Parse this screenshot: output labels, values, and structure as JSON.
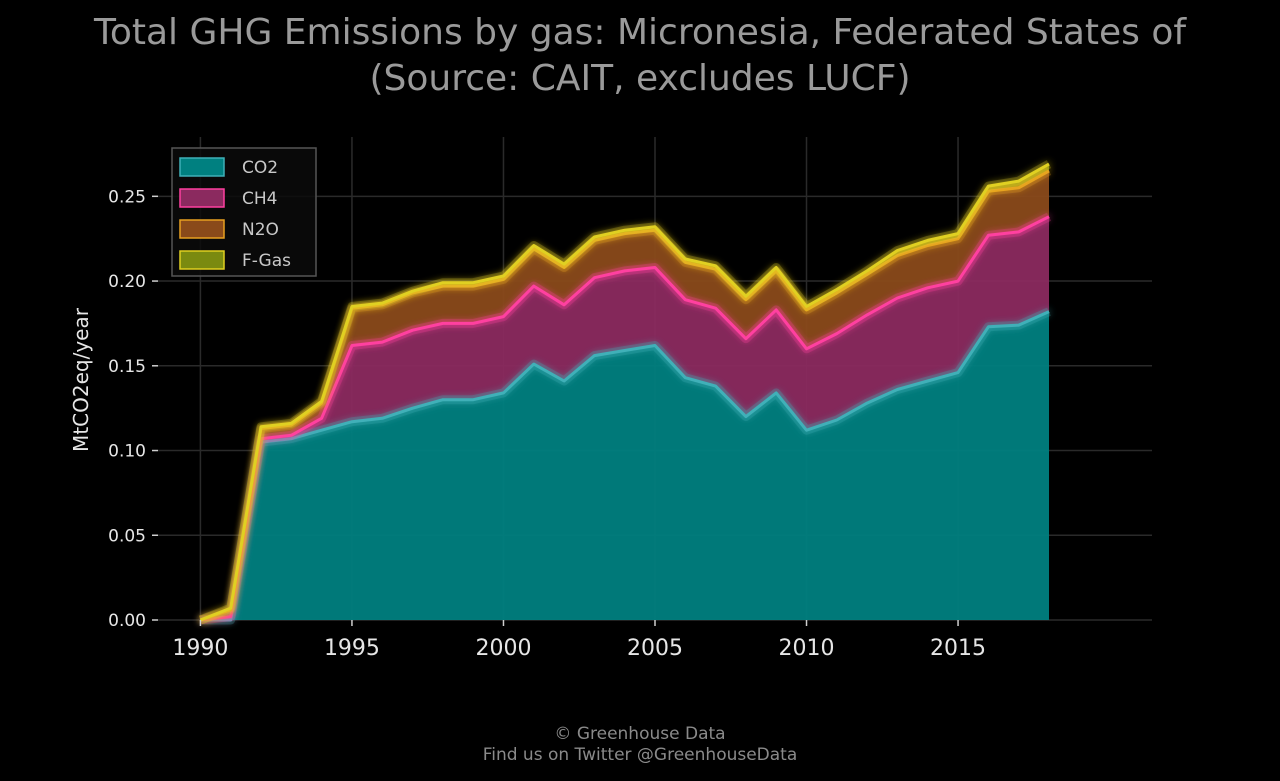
{
  "title": {
    "line1": "Total GHG Emissions by gas: Micronesia, Federated States of",
    "line2": "(Source: CAIT, excludes LUCF)"
  },
  "footer": {
    "line1": "© Greenhouse Data",
    "line2": "Find us on Twitter @GreenhouseData"
  },
  "colors": {
    "background": "#000000",
    "grid": "#2a2a2a",
    "CO2": "#008080",
    "CH4": "#8b2a5f",
    "N2O": "#8a4a1a",
    "F-Gas": "#7a8a10",
    "CO2_line": "#3fb0b8",
    "CH4_line": "#ff3fa0",
    "N2O_line": "#e8a020",
    "F-Gas_line": "#e0d020"
  },
  "chart_data": {
    "type": "area",
    "stacked": true,
    "xlabel": "",
    "ylabel": "MtCO2eq/year",
    "xlim": [
      1988.6,
      2021.4
    ],
    "ylim": [
      0,
      0.285
    ],
    "xticks": [
      1990,
      1995,
      2000,
      2005,
      2010,
      2015
    ],
    "yticks": [
      0.0,
      0.05,
      0.1,
      0.15,
      0.2,
      0.25
    ],
    "ytick_labels": [
      "0.00",
      "0.05",
      "0.10",
      "0.15",
      "0.20",
      "0.25"
    ],
    "grid": true,
    "legend_position": "top-left",
    "x": [
      1990,
      1991,
      1992,
      1993,
      1994,
      1995,
      1996,
      1997,
      1998,
      1999,
      2000,
      2001,
      2002,
      2003,
      2004,
      2005,
      2006,
      2007,
      2008,
      2009,
      2010,
      2011,
      2012,
      2013,
      2014,
      2015,
      2016,
      2017,
      2018
    ],
    "series": [
      {
        "name": "CO2",
        "values": [
          0,
          0,
          0.105,
          0.107,
          0.112,
          0.117,
          0.119,
          0.125,
          0.13,
          0.13,
          0.134,
          0.151,
          0.141,
          0.156,
          0.159,
          0.162,
          0.143,
          0.138,
          0.12,
          0.134,
          0.112,
          0.118,
          0.128,
          0.136,
          0.141,
          0.146,
          0.173,
          0.174,
          0.182
        ]
      },
      {
        "name": "CH4",
        "values": [
          0,
          0.002,
          0.002,
          0.002,
          0.007,
          0.045,
          0.045,
          0.046,
          0.045,
          0.045,
          0.045,
          0.046,
          0.045,
          0.046,
          0.047,
          0.046,
          0.046,
          0.046,
          0.046,
          0.049,
          0.048,
          0.051,
          0.052,
          0.054,
          0.055,
          0.054,
          0.054,
          0.055,
          0.056
        ]
      },
      {
        "name": "N2O",
        "values": [
          0,
          0.004,
          0.006,
          0.006,
          0.009,
          0.022,
          0.022,
          0.022,
          0.022,
          0.022,
          0.022,
          0.022,
          0.022,
          0.022,
          0.022,
          0.022,
          0.022,
          0.023,
          0.023,
          0.023,
          0.023,
          0.024,
          0.024,
          0.025,
          0.025,
          0.025,
          0.026,
          0.026,
          0.027
        ]
      },
      {
        "name": "F-Gas",
        "values": [
          0,
          0.001,
          0.001,
          0.001,
          0.001,
          0.001,
          0.001,
          0.001,
          0.002,
          0.002,
          0.002,
          0.002,
          0.002,
          0.002,
          0.002,
          0.002,
          0.002,
          0.002,
          0.002,
          0.002,
          0.002,
          0.002,
          0.002,
          0.003,
          0.003,
          0.003,
          0.003,
          0.004,
          0.004
        ]
      }
    ]
  }
}
